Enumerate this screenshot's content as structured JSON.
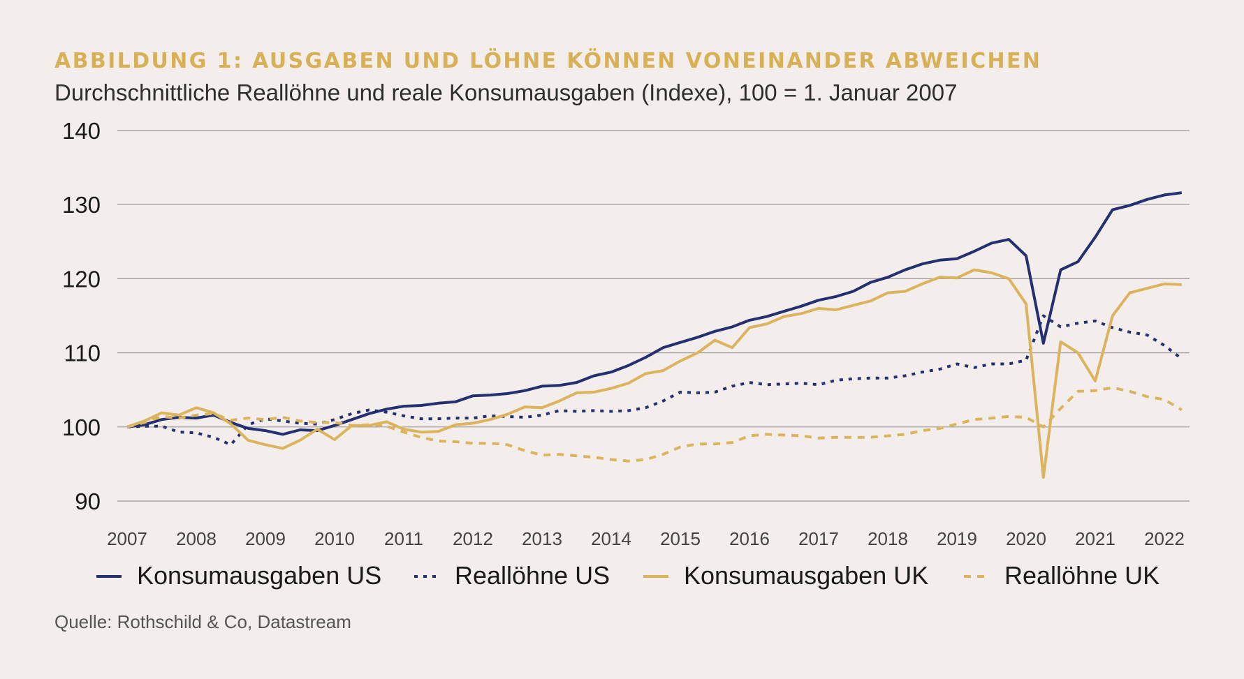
{
  "title": "ABBILDUNG 1: AUSGABEN UND LÖHNE KÖNNEN VONEINANDER ABWEICHEN",
  "subtitle": "Durchschnittliche Reallöhne und reale Konsumausgaben (Indexe), 100 = 1. Januar 2007",
  "source": "Quelle: Rothschild & Co, Datastream",
  "colors": {
    "navy": "#24306f",
    "gold": "#dcb45e",
    "background": "#f3eeec",
    "grid": "#9a9a9a"
  },
  "chart_data": {
    "type": "line",
    "title": "ABBILDUNG 1: AUSGABEN UND LÖHNE KÖNNEN VONEINANDER ABWEICHEN",
    "subtitle": "Durchschnittliche Reallöhne und reale Konsumausgaben (Indexe), 100 = 1. Januar 2007",
    "xlabel": "",
    "ylabel": "",
    "ylim": [
      90,
      140
    ],
    "xlim": [
      2007,
      2022.5
    ],
    "yticks": [
      "90",
      "100",
      "110",
      "120",
      "130",
      "140"
    ],
    "xticks": [
      "2007",
      "2008",
      "2009",
      "2010",
      "2011",
      "2012",
      "2013",
      "2014",
      "2015",
      "2016",
      "2017",
      "2018",
      "2019",
      "2020",
      "2021",
      "2022"
    ],
    "grid": true,
    "legend_position": "bottom",
    "series": [
      {
        "name": "Konsumausgaben US",
        "color": "#24306f",
        "dash": "solid",
        "x": [
          2007,
          2007.25,
          2007.5,
          2007.75,
          2008,
          2008.25,
          2008.5,
          2008.75,
          2009,
          2009.25,
          2009.5,
          2009.75,
          2010,
          2010.25,
          2010.5,
          2010.75,
          2011,
          2011.25,
          2011.5,
          2011.75,
          2012,
          2012.25,
          2012.5,
          2012.75,
          2013,
          2013.25,
          2013.5,
          2013.75,
          2014,
          2014.25,
          2014.5,
          2014.75,
          2015,
          2015.25,
          2015.5,
          2015.75,
          2016,
          2016.25,
          2016.5,
          2016.75,
          2017,
          2017.25,
          2017.5,
          2017.75,
          2018,
          2018.25,
          2018.5,
          2018.75,
          2019,
          2019.25,
          2019.5,
          2019.75,
          2020,
          2020.25,
          2020.5,
          2020.75,
          2021,
          2021.25,
          2021.5,
          2021.75,
          2022,
          2022.25
        ],
        "y": [
          100,
          100.3,
          101,
          101.3,
          101.2,
          101.6,
          100.6,
          99.8,
          99.5,
          99,
          99.6,
          99.5,
          100.2,
          101,
          101.8,
          102.4,
          102.8,
          102.9,
          103.2,
          103.4,
          104.2,
          104.3,
          104.5,
          104.9,
          105.5,
          105.6,
          106,
          106.9,
          107.4,
          108.3,
          109.4,
          110.7,
          111.4,
          112.1,
          112.9,
          113.5,
          114.4,
          114.9,
          115.6,
          116.3,
          117.1,
          117.6,
          118.3,
          119.5,
          120.2,
          121.2,
          122,
          122.5,
          122.7,
          123.7,
          124.8,
          125.3,
          123.1,
          111.3,
          121.2,
          122.3,
          125.6,
          129.3,
          129.9,
          130.7,
          131.3,
          131.6
        ]
      },
      {
        "name": "Reallöhne US",
        "color": "#24306f",
        "dash": "dotted",
        "x": [
          2007,
          2007.25,
          2007.5,
          2007.75,
          2008,
          2008.25,
          2008.5,
          2008.75,
          2009,
          2009.25,
          2009.5,
          2009.75,
          2010,
          2010.25,
          2010.5,
          2010.75,
          2011,
          2011.25,
          2011.5,
          2011.75,
          2012,
          2012.25,
          2012.5,
          2012.75,
          2013,
          2013.25,
          2013.5,
          2013.75,
          2014,
          2014.25,
          2014.5,
          2014.75,
          2015,
          2015.25,
          2015.5,
          2015.75,
          2016,
          2016.25,
          2016.5,
          2016.75,
          2017,
          2017.25,
          2017.5,
          2017.75,
          2018,
          2018.25,
          2018.5,
          2018.75,
          2019,
          2019.25,
          2019.5,
          2019.75,
          2020,
          2020.25,
          2020.5,
          2020.75,
          2021,
          2021.25,
          2021.5,
          2021.75,
          2022,
          2022.25
        ],
        "y": [
          100,
          100.1,
          100.1,
          99.3,
          99.2,
          98.6,
          97.6,
          100.3,
          101.1,
          100.8,
          100.5,
          100.4,
          101,
          101.8,
          102.3,
          102,
          101.5,
          101.1,
          101.1,
          101.2,
          101.2,
          101.5,
          101.4,
          101.3,
          101.6,
          102.2,
          102.1,
          102.2,
          102.1,
          102.2,
          102.6,
          103.5,
          104.7,
          104.6,
          104.7,
          105.5,
          106,
          105.7,
          105.8,
          105.9,
          105.7,
          106.3,
          106.5,
          106.6,
          106.6,
          106.9,
          107.4,
          107.8,
          108.5,
          108,
          108.5,
          108.5,
          109,
          115,
          113.5,
          114,
          114.3,
          113.4,
          112.8,
          112.4,
          111,
          109.2
        ]
      },
      {
        "name": "Konsumausgaben UK",
        "color": "#dcb45e",
        "dash": "solid",
        "x": [
          2007,
          2007.25,
          2007.5,
          2007.75,
          2008,
          2008.25,
          2008.5,
          2008.75,
          2009,
          2009.25,
          2009.5,
          2009.75,
          2010,
          2010.25,
          2010.5,
          2010.75,
          2011,
          2011.25,
          2011.5,
          2011.75,
          2012,
          2012.25,
          2012.5,
          2012.75,
          2013,
          2013.25,
          2013.5,
          2013.75,
          2014,
          2014.25,
          2014.5,
          2014.75,
          2015,
          2015.25,
          2015.5,
          2015.75,
          2016,
          2016.25,
          2016.5,
          2016.75,
          2017,
          2017.25,
          2017.5,
          2017.75,
          2018,
          2018.25,
          2018.5,
          2018.75,
          2019,
          2019.25,
          2019.5,
          2019.75,
          2020,
          2020.25,
          2020.5,
          2020.75,
          2021,
          2021.25,
          2021.5,
          2021.75,
          2022,
          2022.25
        ],
        "y": [
          100,
          100.8,
          101.9,
          101.6,
          102.6,
          101.9,
          100.4,
          98.2,
          97.6,
          97.1,
          98.2,
          99.7,
          98.3,
          100.2,
          100.2,
          100.7,
          99.7,
          99.3,
          99.4,
          100.3,
          100.5,
          101,
          101.7,
          102.7,
          102.6,
          103.5,
          104.6,
          104.7,
          105.2,
          105.9,
          107.2,
          107.6,
          108.9,
          110,
          111.7,
          110.7,
          113.4,
          113.9,
          114.9,
          115.3,
          116,
          115.8,
          116.4,
          117,
          118.1,
          118.3,
          119.3,
          120.2,
          120.1,
          121.2,
          120.8,
          120,
          116.6,
          93.2,
          111.5,
          110,
          106.2,
          115,
          118.1,
          118.7,
          119.3,
          119.2
        ]
      },
      {
        "name": "Reallöhne UK",
        "color": "#dcb45e",
        "dash": "dashed",
        "x": [
          2007,
          2007.25,
          2007.5,
          2007.75,
          2008,
          2008.25,
          2008.5,
          2008.75,
          2009,
          2009.25,
          2009.5,
          2009.75,
          2010,
          2010.25,
          2010.5,
          2010.75,
          2011,
          2011.25,
          2011.5,
          2011.75,
          2012,
          2012.25,
          2012.5,
          2012.75,
          2013,
          2013.25,
          2013.5,
          2013.75,
          2014,
          2014.25,
          2014.5,
          2014.75,
          2015,
          2015.25,
          2015.5,
          2015.75,
          2016,
          2016.25,
          2016.5,
          2016.75,
          2017,
          2017.25,
          2017.5,
          2017.75,
          2018,
          2018.25,
          2018.5,
          2018.75,
          2019,
          2019.25,
          2019.5,
          2019.75,
          2020,
          2020.25,
          2020.5,
          2020.75,
          2021,
          2021.25,
          2021.5,
          2021.75,
          2022,
          2022.25
        ],
        "y": [
          100,
          100.6,
          101.4,
          101.2,
          101.6,
          101.8,
          100.9,
          101.2,
          101,
          101.3,
          100.8,
          100.6,
          100.6,
          100.2,
          100.3,
          100.1,
          99.3,
          98.6,
          98.1,
          98,
          97.8,
          97.8,
          97.6,
          96.8,
          96.2,
          96.3,
          96.1,
          95.9,
          95.6,
          95.4,
          95.6,
          96.3,
          97.3,
          97.7,
          97.7,
          97.9,
          98.8,
          99,
          98.9,
          98.8,
          98.5,
          98.6,
          98.6,
          98.6,
          98.8,
          99,
          99.5,
          99.8,
          100.4,
          101,
          101.2,
          101.4,
          101.3,
          100,
          102.5,
          104.8,
          104.9,
          105.3,
          104.8,
          104.1,
          103.7,
          102.3
        ]
      }
    ]
  }
}
